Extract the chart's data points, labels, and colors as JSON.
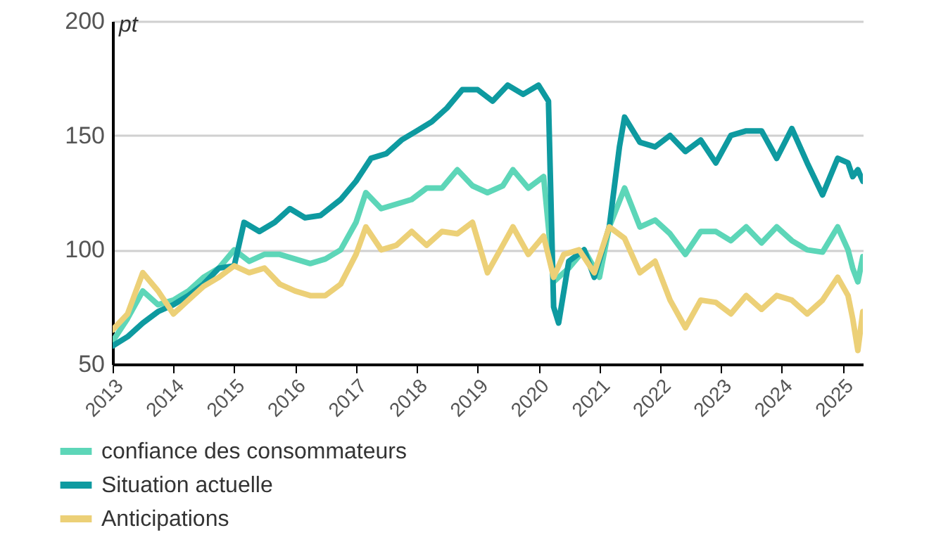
{
  "chart_data": {
    "type": "line",
    "ylabel": "pt",
    "xlim": [
      "2013-01",
      "2025-05"
    ],
    "xticks": [
      "2013",
      "2014",
      "2015",
      "2016",
      "2017",
      "2018",
      "2019",
      "2020",
      "2021",
      "2022",
      "2023",
      "2024",
      "2025"
    ],
    "ylim": [
      50,
      200
    ],
    "yticks": [
      50,
      100,
      150,
      200
    ],
    "grid": "y",
    "legend": "bottom",
    "line_style": "solid",
    "series": [
      {
        "name": "confiance des consommateurs",
        "color": "#5dd6b8",
        "x": [
          "2013-01",
          "2013-04",
          "2013-07",
          "2013-10",
          "2014-01",
          "2014-04",
          "2014-07",
          "2014-10",
          "2015-01",
          "2015-04",
          "2015-07",
          "2015-10",
          "2016-01",
          "2016-04",
          "2016-07",
          "2016-10",
          "2017-01",
          "2017-03",
          "2017-06",
          "2017-09",
          "2017-12",
          "2018-03",
          "2018-06",
          "2018-09",
          "2018-12",
          "2019-03",
          "2019-06",
          "2019-08",
          "2019-11",
          "2020-02",
          "2020-04",
          "2020-07",
          "2020-10",
          "2021-01",
          "2021-03",
          "2021-06",
          "2021-09",
          "2021-12",
          "2022-03",
          "2022-06",
          "2022-09",
          "2022-12",
          "2023-03",
          "2023-06",
          "2023-09",
          "2023-12",
          "2024-03",
          "2024-06",
          "2024-09",
          "2024-12",
          "2025-02",
          "2025-03",
          "2025-04",
          "2025-05"
        ],
        "values": [
          60,
          70,
          82,
          76,
          78,
          82,
          88,
          92,
          100,
          95,
          98,
          98,
          96,
          94,
          96,
          100,
          112,
          125,
          118,
          120,
          122,
          127,
          127,
          135,
          128,
          125,
          128,
          135,
          127,
          132,
          86,
          92,
          100,
          88,
          110,
          127,
          110,
          113,
          107,
          98,
          108,
          108,
          104,
          110,
          103,
          110,
          104,
          100,
          99,
          110,
          100,
          92,
          86,
          97
        ]
      },
      {
        "name": "Situation actuelle",
        "color": "#0e9aa0",
        "x": [
          "2013-01",
          "2013-04",
          "2013-07",
          "2013-10",
          "2014-01",
          "2014-04",
          "2014-07",
          "2014-10",
          "2015-01",
          "2015-03",
          "2015-06",
          "2015-09",
          "2015-12",
          "2016-03",
          "2016-06",
          "2016-10",
          "2017-01",
          "2017-04",
          "2017-07",
          "2017-10",
          "2018-01",
          "2018-04",
          "2018-07",
          "2018-10",
          "2019-01",
          "2019-04",
          "2019-07",
          "2019-10",
          "2020-01",
          "2020-03",
          "2020-04",
          "2020-05",
          "2020-07",
          "2020-10",
          "2020-12",
          "2021-03",
          "2021-05",
          "2021-06",
          "2021-09",
          "2021-12",
          "2022-03",
          "2022-06",
          "2022-09",
          "2022-12",
          "2023-03",
          "2023-06",
          "2023-09",
          "2023-12",
          "2024-03",
          "2024-06",
          "2024-09",
          "2024-12",
          "2025-02",
          "2025-03",
          "2025-04",
          "2025-05"
        ],
        "values": [
          58,
          62,
          68,
          73,
          76,
          80,
          85,
          92,
          93,
          112,
          108,
          112,
          118,
          114,
          115,
          122,
          130,
          140,
          142,
          148,
          152,
          156,
          162,
          170,
          170,
          165,
          172,
          168,
          172,
          165,
          75,
          68,
          95,
          100,
          88,
          110,
          145,
          158,
          147,
          145,
          150,
          143,
          148,
          138,
          150,
          152,
          152,
          140,
          153,
          138,
          124,
          140,
          138,
          132,
          135,
          130
        ]
      },
      {
        "name": "Anticipations",
        "color": "#ecd077",
        "x": [
          "2013-01",
          "2013-04",
          "2013-07",
          "2013-10",
          "2014-01",
          "2014-04",
          "2014-07",
          "2014-10",
          "2015-01",
          "2015-04",
          "2015-07",
          "2015-10",
          "2016-01",
          "2016-04",
          "2016-07",
          "2016-10",
          "2017-01",
          "2017-03",
          "2017-06",
          "2017-09",
          "2017-12",
          "2018-03",
          "2018-06",
          "2018-09",
          "2018-12",
          "2019-03",
          "2019-06",
          "2019-08",
          "2019-11",
          "2020-02",
          "2020-04",
          "2020-06",
          "2020-09",
          "2020-12",
          "2021-03",
          "2021-06",
          "2021-09",
          "2021-12",
          "2022-03",
          "2022-06",
          "2022-09",
          "2022-12",
          "2023-03",
          "2023-06",
          "2023-09",
          "2023-12",
          "2024-03",
          "2024-06",
          "2024-09",
          "2024-12",
          "2025-02",
          "2025-03",
          "2025-04",
          "2025-05"
        ],
        "values": [
          65,
          72,
          90,
          82,
          72,
          78,
          84,
          88,
          93,
          90,
          92,
          85,
          82,
          80,
          80,
          85,
          98,
          110,
          100,
          102,
          108,
          102,
          108,
          107,
          112,
          90,
          102,
          110,
          98,
          106,
          88,
          98,
          100,
          90,
          110,
          105,
          90,
          95,
          78,
          66,
          78,
          77,
          72,
          80,
          74,
          80,
          78,
          72,
          78,
          88,
          80,
          70,
          56,
          73
        ]
      }
    ]
  }
}
